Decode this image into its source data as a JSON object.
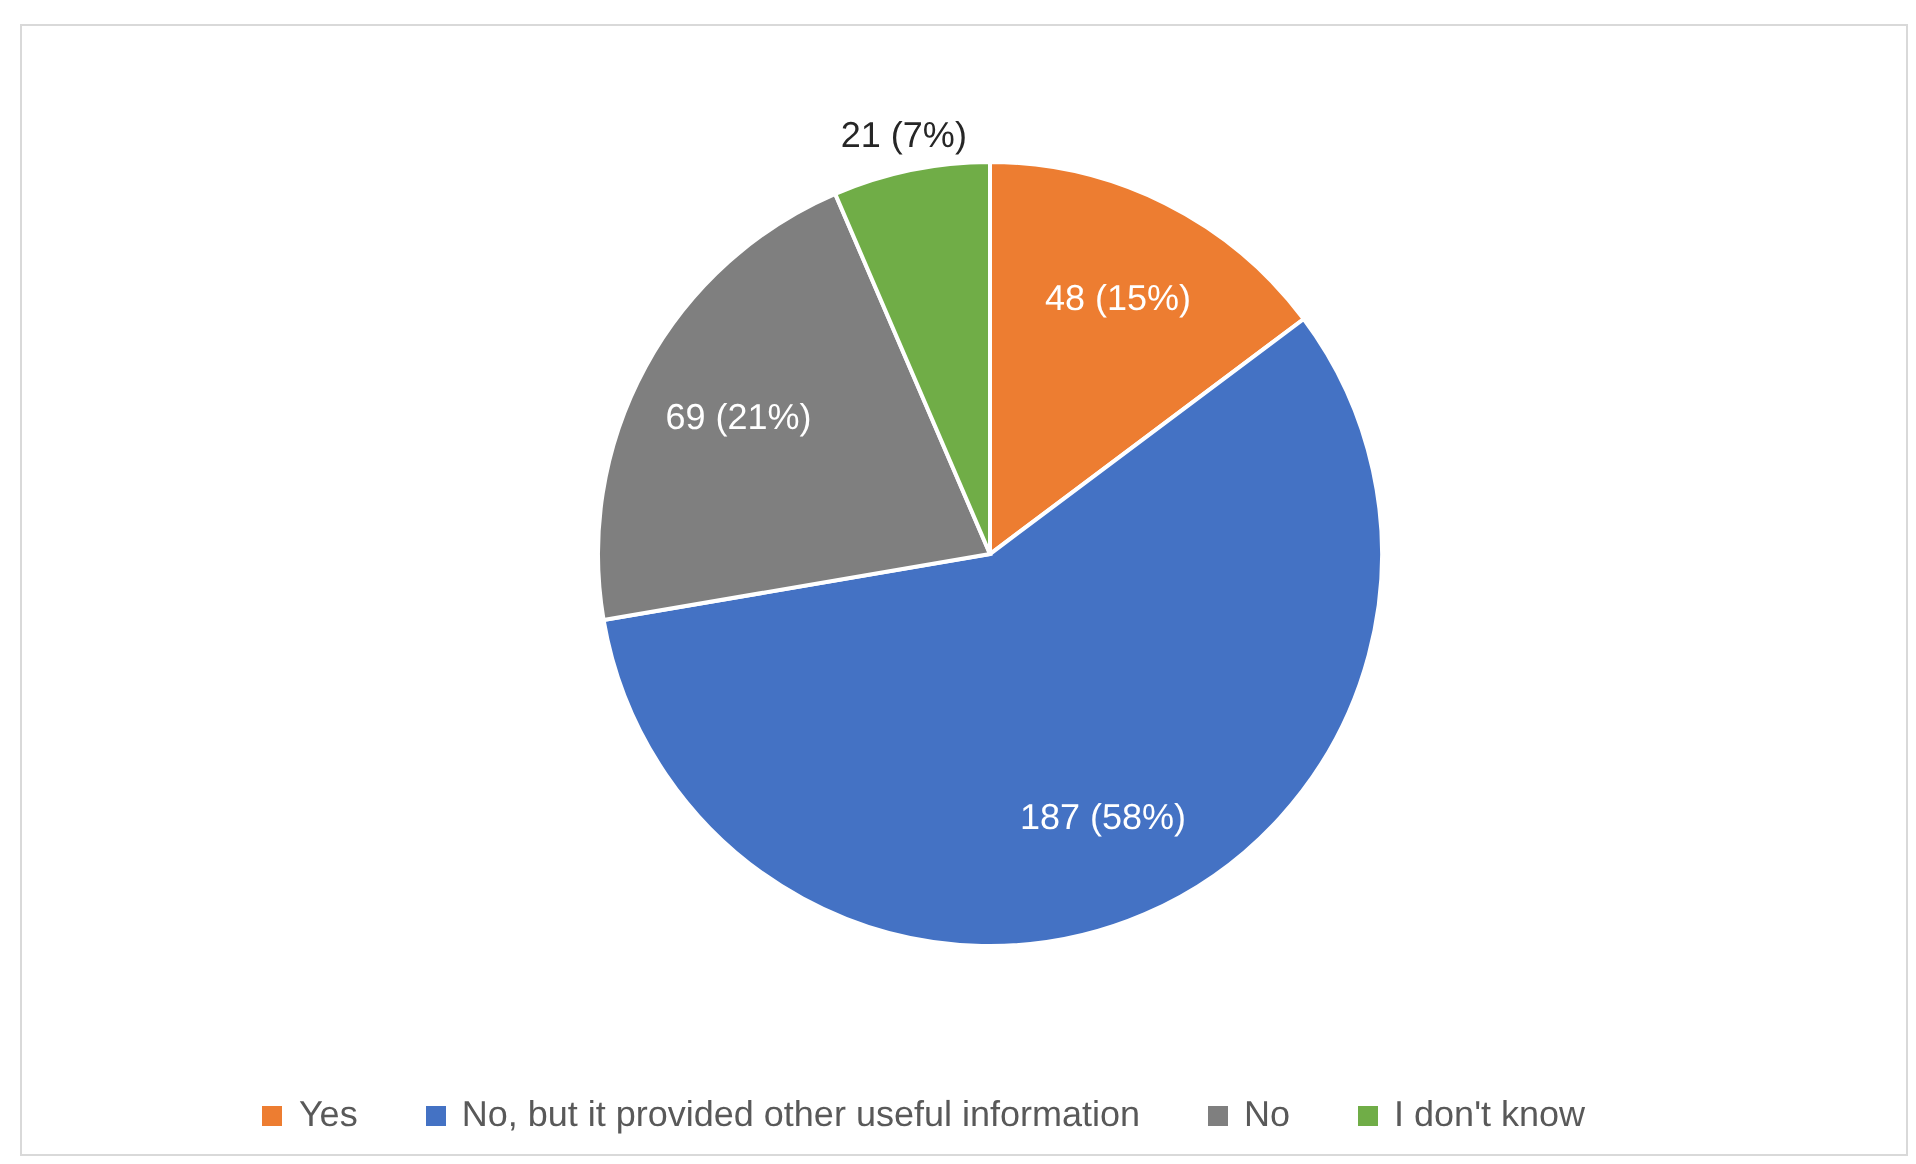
{
  "chart_data": {
    "type": "pie",
    "categories": [
      "Yes",
      "No, but it provided other useful information",
      "No",
      "I don't know"
    ],
    "values": [
      48,
      187,
      69,
      21
    ],
    "colors": [
      "#ed7d31",
      "#4472c4",
      "#7f7f7f",
      "#70ad47"
    ],
    "value_labels": [
      "48 (15%)",
      "187 (58%)",
      "69 (21%)",
      "21 (7%)"
    ],
    "legend": "bottom"
  }
}
